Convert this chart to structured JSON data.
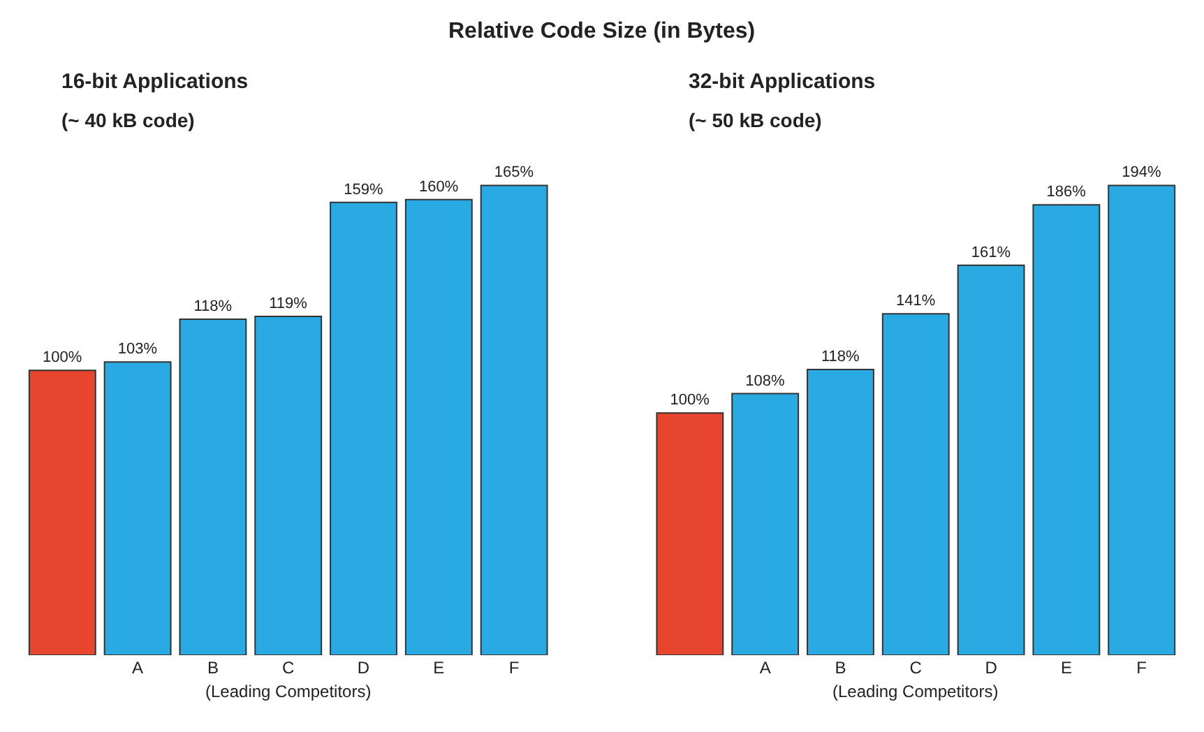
{
  "chart_data": [
    {
      "type": "bar",
      "title": "16-bit Applications",
      "subtitle": "(~ 40 kB code)",
      "categories": [
        null,
        "A",
        "B",
        "C",
        "D",
        "E",
        "F"
      ],
      "values": [
        100,
        103,
        118,
        119,
        159,
        160,
        165
      ],
      "value_labels": [
        "100%",
        "103%",
        "118%",
        "119%",
        "159%",
        "160%",
        "165%"
      ],
      "colors": [
        "#e8452f",
        "#2aaae2",
        "#2aaae2",
        "#2aaae2",
        "#2aaae2",
        "#2aaae2",
        "#2aaae2"
      ],
      "tick_labels": "x",
      "annotations": [
        "Relative Code Size (in Bytes)",
        "(Leading Competitors)"
      ]
    },
    {
      "type": "bar",
      "title": "32-bit Applications",
      "subtitle": "(~ 50 kB code)",
      "categories": [
        null,
        "A",
        "B",
        "C",
        "D",
        "E",
        "F"
      ],
      "values": [
        100,
        108,
        118,
        141,
        161,
        186,
        194
      ],
      "value_labels": [
        "100%",
        "108%",
        "118%",
        "141%",
        "161%",
        "186%",
        "194%"
      ],
      "colors": [
        "#e8452f",
        "#2aaae2",
        "#2aaae2",
        "#2aaae2",
        "#2aaae2",
        "#2aaae2",
        "#2aaae2"
      ],
      "tick_labels": "x",
      "annotations": [
        "(Leading Competitors)"
      ]
    }
  ]
}
